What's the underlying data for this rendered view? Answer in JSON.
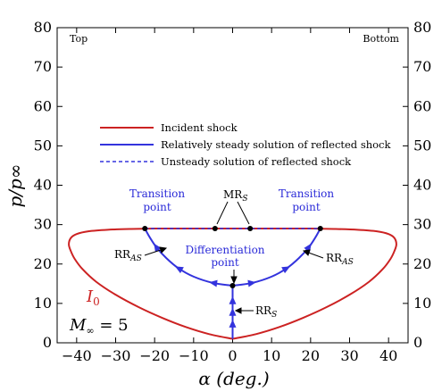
{
  "chart_data": {
    "type": "line",
    "xlabel": "α (deg.)",
    "ylabel": "p/p∞",
    "xlim": [
      -45,
      45
    ],
    "ylim": [
      0,
      80
    ],
    "xticks": [
      -40,
      -30,
      -20,
      -10,
      0,
      10,
      20,
      30,
      40
    ],
    "yticks": [
      0,
      10,
      20,
      30,
      40,
      50,
      60,
      70,
      80
    ],
    "grid": false,
    "legend_position": "center-left",
    "corner_labels": {
      "left": "Top",
      "right": "Bottom"
    },
    "colors": {
      "incident": "#cc2222",
      "reflected": "#3333dd",
      "point": "#000000",
      "text_blue": "#2a2ad8"
    },
    "series": [
      {
        "name": "Incident shock",
        "style": "solid",
        "color": "#cc2222",
        "x": [
          0,
          6,
          12,
          18,
          24,
          30,
          35,
          38.5,
          40.5,
          41.5,
          42,
          41.5,
          40,
          37,
          32,
          26,
          20,
          14,
          8,
          4,
          0,
          -4,
          -8,
          -14,
          -20,
          -26,
          -32,
          -37,
          -40,
          -41.5,
          -42,
          -41.5,
          -40.5,
          -38.5,
          -35,
          -30,
          -24,
          -18,
          -12,
          -6,
          0
        ],
        "y": [
          1,
          2.2,
          4,
          6.3,
          9,
          12.2,
          15.5,
          18.7,
          21.3,
          23.3,
          25,
          26.6,
          27.6,
          28.3,
          28.7,
          28.9,
          29,
          29,
          29,
          29,
          29,
          29,
          29,
          29,
          29,
          28.9,
          28.7,
          28.3,
          27.6,
          26.6,
          25,
          23.3,
          21.3,
          18.7,
          15.5,
          12.2,
          9,
          6.3,
          4,
          2.2,
          1
        ]
      },
      {
        "name": "Relatively steady solution of reflected shock",
        "style": "solid",
        "color": "#3333dd",
        "branches": [
          {
            "x": [
              0,
              0
            ],
            "y": [
              1,
              14.5
            ]
          },
          {
            "x": [
              0,
              5,
              10,
              14,
              17,
              19.5,
              21.2,
              22.5
            ],
            "y": [
              14.5,
              15.2,
              16.8,
              19,
              21.5,
              24.2,
              26.7,
              29
            ]
          },
          {
            "x": [
              0,
              -5,
              -10,
              -14,
              -17,
              -19.5,
              -21.2,
              -22.5
            ],
            "y": [
              14.5,
              15.2,
              16.8,
              19,
              21.5,
              24.2,
              26.7,
              29
            ]
          }
        ]
      },
      {
        "name": "Unsteady solution of reflected shock",
        "style": "dashed",
        "color": "#3333dd",
        "x": [
          -22.5,
          -10,
          0,
          10,
          22.5
        ],
        "y": [
          29,
          29,
          29,
          29,
          29
        ]
      }
    ],
    "points": [
      {
        "x": -22.5,
        "y": 29
      },
      {
        "x": -4.5,
        "y": 29
      },
      {
        "x": 4.5,
        "y": 29
      },
      {
        "x": 22.5,
        "y": 29
      },
      {
        "x": 0,
        "y": 14.5
      }
    ],
    "annotations": {
      "transition_left": [
        "Transition",
        "point"
      ],
      "transition_right": [
        "Transition",
        "point"
      ],
      "mr": "MR",
      "mr_sub": "S",
      "rr_as_left": "RR",
      "rr_as_left_sub": "AS",
      "rr_as_right": "RR",
      "rr_as_right_sub": "AS",
      "differentiation": [
        "Differentiation",
        "point"
      ],
      "rr_s": "RR",
      "rr_s_sub": "S",
      "incident_label": "I",
      "incident_label_sub": "0",
      "mach_label": "M",
      "mach_label_sub": "∞",
      "mach_value": " = 5"
    }
  }
}
